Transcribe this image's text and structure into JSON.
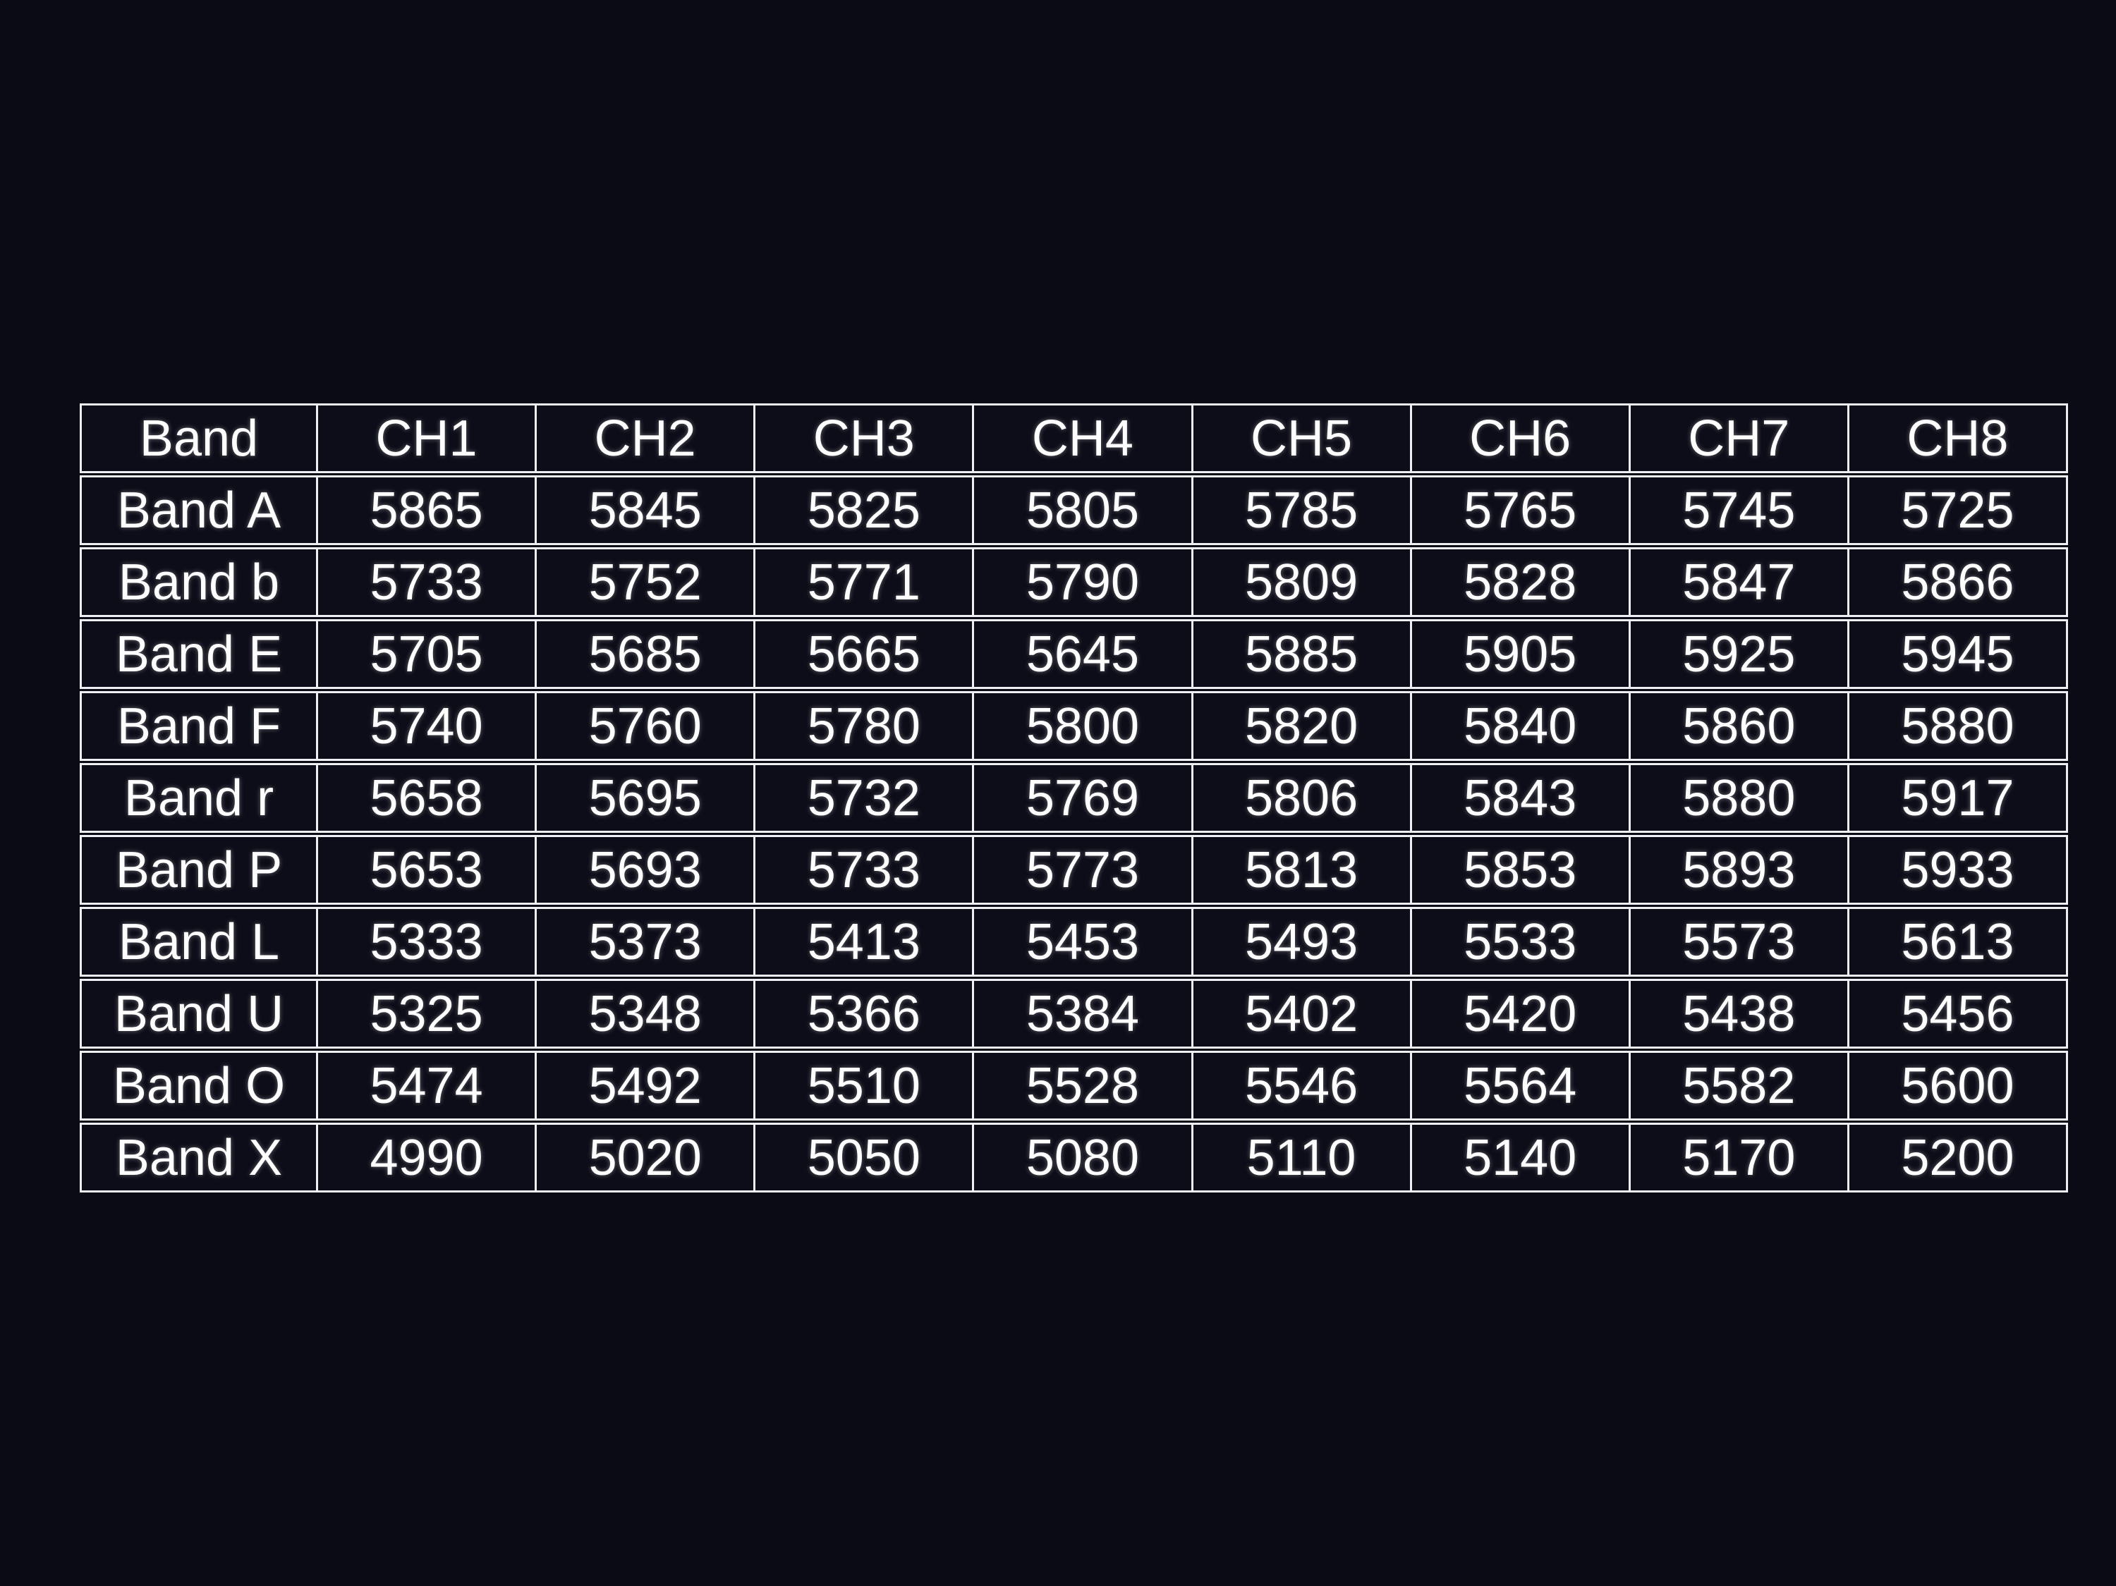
{
  "chart_data": {
    "type": "table",
    "columns": [
      "Band",
      "CH1",
      "CH2",
      "CH3",
      "CH4",
      "CH5",
      "CH6",
      "CH7",
      "CH8"
    ],
    "rows": [
      {
        "band": "Band A",
        "values": [
          5865,
          5845,
          5825,
          5805,
          5785,
          5765,
          5745,
          5725
        ]
      },
      {
        "band": "Band b",
        "values": [
          5733,
          5752,
          5771,
          5790,
          5809,
          5828,
          5847,
          5866
        ]
      },
      {
        "band": "Band E",
        "values": [
          5705,
          5685,
          5665,
          5645,
          5885,
          5905,
          5925,
          5945
        ]
      },
      {
        "band": "Band F",
        "values": [
          5740,
          5760,
          5780,
          5800,
          5820,
          5840,
          5860,
          5880
        ]
      },
      {
        "band": "Band r",
        "values": [
          5658,
          5695,
          5732,
          5769,
          5806,
          5843,
          5880,
          5917
        ]
      },
      {
        "band": "Band P",
        "values": [
          5653,
          5693,
          5733,
          5773,
          5813,
          5853,
          5893,
          5933
        ]
      },
      {
        "band": "Band L",
        "values": [
          5333,
          5373,
          5413,
          5453,
          5493,
          5533,
          5573,
          5613
        ]
      },
      {
        "band": "Band U",
        "values": [
          5325,
          5348,
          5366,
          5384,
          5402,
          5420,
          5438,
          5456
        ]
      },
      {
        "band": "Band O",
        "values": [
          5474,
          5492,
          5510,
          5528,
          5546,
          5564,
          5582,
          5600
        ]
      },
      {
        "band": "Band X",
        "values": [
          4990,
          5020,
          5050,
          5080,
          5110,
          5140,
          5170,
          5200
        ]
      }
    ],
    "layout": {
      "grid": "on",
      "legend": "none"
    },
    "colors": {
      "background": "#0a0b15",
      "cell_background": "#0c0d18",
      "border": "#edeff3",
      "text": "#fdfdfe"
    }
  }
}
